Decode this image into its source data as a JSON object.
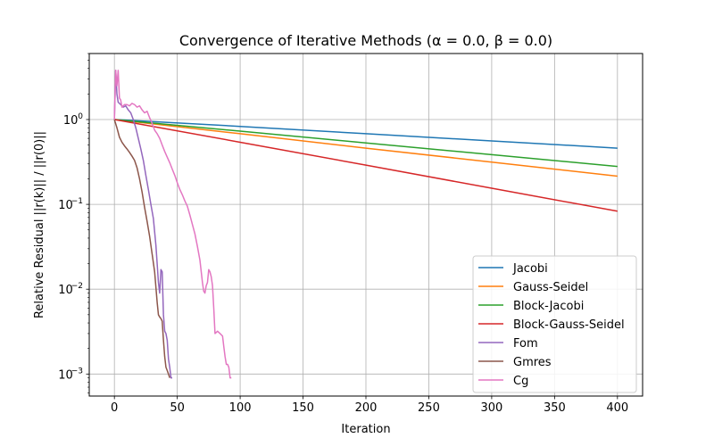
{
  "chart_data": {
    "type": "line",
    "title": "Convergence of Iterative Methods (α = 0.0, β = 0.0)",
    "xlabel": "Iteration",
    "ylabel": "Relative Residual ||r(k)|| / ||r(0)||",
    "xlim": [
      -20,
      420
    ],
    "ylim": [
      0.00055,
      6.0
    ],
    "yscale": "log",
    "grid": true,
    "legend_position": "lower right",
    "x_ticks": [
      {
        "value": 0,
        "label": "0"
      },
      {
        "value": 50,
        "label": "50"
      },
      {
        "value": 100,
        "label": "100"
      },
      {
        "value": 150,
        "label": "150"
      },
      {
        "value": 200,
        "label": "200"
      },
      {
        "value": 250,
        "label": "250"
      },
      {
        "value": 300,
        "label": "300"
      },
      {
        "value": 350,
        "label": "350"
      },
      {
        "value": 400,
        "label": "400"
      }
    ],
    "y_ticks": [
      {
        "value": 0.001,
        "base": "10",
        "exp": "−3"
      },
      {
        "value": 0.01,
        "base": "10",
        "exp": "−2"
      },
      {
        "value": 0.1,
        "base": "10",
        "exp": "−1"
      },
      {
        "value": 1,
        "base": "10",
        "exp": "0"
      }
    ],
    "series": [
      {
        "name": "Jacobi",
        "color": "#1f77b4",
        "points": [
          [
            0,
            1.0
          ],
          [
            100,
            0.83
          ],
          [
            200,
            0.68
          ],
          [
            300,
            0.56
          ],
          [
            400,
            0.46
          ]
        ]
      },
      {
        "name": "Gauss-Seidel",
        "color": "#ff7f0e",
        "points": [
          [
            0,
            1.0
          ],
          [
            100,
            0.68
          ],
          [
            200,
            0.46
          ],
          [
            300,
            0.315
          ],
          [
            400,
            0.215
          ]
        ]
      },
      {
        "name": "Block-Jacobi",
        "color": "#2ca02c",
        "points": [
          [
            0,
            1.0
          ],
          [
            100,
            0.73
          ],
          [
            200,
            0.53
          ],
          [
            300,
            0.385
          ],
          [
            400,
            0.28
          ]
        ]
      },
      {
        "name": "Block-Gauss-Seidel",
        "color": "#d62728",
        "points": [
          [
            0,
            1.0
          ],
          [
            100,
            0.54
          ],
          [
            200,
            0.29
          ],
          [
            300,
            0.155
          ],
          [
            400,
            0.083
          ]
        ]
      },
      {
        "name": "Fom",
        "color": "#9467bd",
        "points": [
          [
            0,
            1.0
          ],
          [
            1,
            3.8
          ],
          [
            2,
            2.0
          ],
          [
            3,
            1.6
          ],
          [
            5,
            1.5
          ],
          [
            7,
            1.4
          ],
          [
            9,
            1.45
          ],
          [
            11,
            1.3
          ],
          [
            13,
            1.2
          ],
          [
            15,
            1.0
          ],
          [
            17,
            0.8
          ],
          [
            19,
            0.6
          ],
          [
            21,
            0.45
          ],
          [
            23,
            0.33
          ],
          [
            25,
            0.22
          ],
          [
            27,
            0.15
          ],
          [
            29,
            0.1
          ],
          [
            31,
            0.068
          ],
          [
            33,
            0.033
          ],
          [
            34,
            0.02
          ],
          [
            35,
            0.012
          ],
          [
            36,
            0.009
          ],
          [
            37,
            0.017
          ],
          [
            38,
            0.016
          ],
          [
            39,
            0.005
          ],
          [
            40,
            0.0032
          ],
          [
            41,
            0.003
          ],
          [
            42,
            0.0025
          ],
          [
            43,
            0.0015
          ],
          [
            44,
            0.0012
          ],
          [
            45,
            0.0009
          ],
          [
            46,
            0.0009
          ]
        ]
      },
      {
        "name": "Gmres",
        "color": "#8c564b",
        "points": [
          [
            0,
            1.0
          ],
          [
            2,
            0.8
          ],
          [
            4,
            0.62
          ],
          [
            6,
            0.54
          ],
          [
            8,
            0.49
          ],
          [
            10,
            0.45
          ],
          [
            12,
            0.41
          ],
          [
            14,
            0.37
          ],
          [
            16,
            0.33
          ],
          [
            18,
            0.27
          ],
          [
            20,
            0.2
          ],
          [
            22,
            0.14
          ],
          [
            24,
            0.092
          ],
          [
            26,
            0.063
          ],
          [
            28,
            0.042
          ],
          [
            30,
            0.026
          ],
          [
            32,
            0.016
          ],
          [
            34,
            0.007
          ],
          [
            35,
            0.005
          ],
          [
            36,
            0.0047
          ],
          [
            37,
            0.0045
          ],
          [
            38,
            0.0042
          ],
          [
            39,
            0.0025
          ],
          [
            40,
            0.0016
          ],
          [
            41,
            0.0012
          ],
          [
            42,
            0.0011
          ],
          [
            43,
            0.001
          ],
          [
            44,
            0.0009
          ]
        ]
      },
      {
        "name": "Cg",
        "color": "#e377c2",
        "points": [
          [
            0,
            1.0
          ],
          [
            1,
            3.8
          ],
          [
            2,
            2.5
          ],
          [
            3,
            3.8
          ],
          [
            4,
            1.8
          ],
          [
            5,
            1.7
          ],
          [
            6,
            1.4
          ],
          [
            8,
            1.5
          ],
          [
            10,
            1.5
          ],
          [
            12,
            1.45
          ],
          [
            14,
            1.55
          ],
          [
            16,
            1.5
          ],
          [
            18,
            1.4
          ],
          [
            20,
            1.45
          ],
          [
            22,
            1.3
          ],
          [
            24,
            1.2
          ],
          [
            26,
            1.25
          ],
          [
            28,
            1.05
          ],
          [
            30,
            0.9
          ],
          [
            32,
            0.75
          ],
          [
            34,
            0.68
          ],
          [
            36,
            0.6
          ],
          [
            38,
            0.5
          ],
          [
            40,
            0.42
          ],
          [
            42,
            0.36
          ],
          [
            44,
            0.31
          ],
          [
            46,
            0.26
          ],
          [
            48,
            0.22
          ],
          [
            50,
            0.18
          ],
          [
            52,
            0.15
          ],
          [
            54,
            0.13
          ],
          [
            56,
            0.11
          ],
          [
            58,
            0.095
          ],
          [
            60,
            0.075
          ],
          [
            62,
            0.058
          ],
          [
            64,
            0.045
          ],
          [
            66,
            0.032
          ],
          [
            68,
            0.022
          ],
          [
            70,
            0.012
          ],
          [
            71,
            0.0095
          ],
          [
            72,
            0.009
          ],
          [
            73,
            0.011
          ],
          [
            74,
            0.012
          ],
          [
            75,
            0.017
          ],
          [
            76,
            0.016
          ],
          [
            77,
            0.014
          ],
          [
            78,
            0.011
          ],
          [
            79,
            0.006
          ],
          [
            80,
            0.003
          ],
          [
            82,
            0.0032
          ],
          [
            84,
            0.003
          ],
          [
            86,
            0.0028
          ],
          [
            87,
            0.0021
          ],
          [
            88,
            0.0016
          ],
          [
            89,
            0.0013
          ],
          [
            90,
            0.0013
          ],
          [
            91,
            0.0012
          ],
          [
            92,
            0.0009
          ],
          [
            93,
            0.0009
          ]
        ]
      }
    ]
  }
}
